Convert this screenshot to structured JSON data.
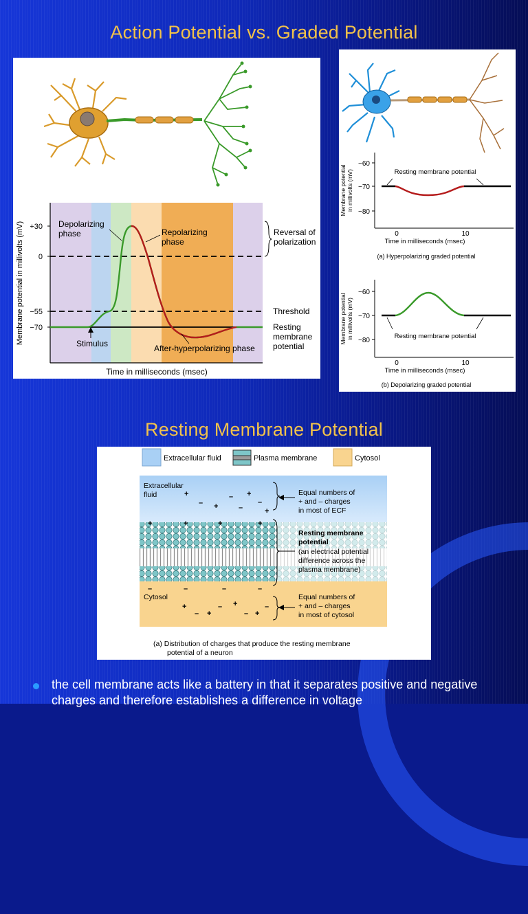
{
  "slide": {
    "title_top": "Action Potential vs. Graded Potential",
    "title_bottom": "Resting Membrane Potential",
    "bullet": "the cell membrane acts like a battery in that it separates positive and negative charges and therefore establishes a difference in voltage"
  },
  "action_potential_chart": {
    "ylabel": "Membrane potential in millivolts (mV)",
    "xlabel": "Time in milliseconds (msec)",
    "ticks": [
      "+30",
      "0",
      "−55",
      "−70"
    ],
    "labels": {
      "depolarizing": [
        "Depolarizing",
        "phase"
      ],
      "repolarizing": [
        "Repolarizing",
        "phase"
      ],
      "reversal": [
        "Reversal of",
        "polarization"
      ],
      "threshold": "Threshold",
      "resting": [
        "Resting",
        "membrane",
        "potential"
      ],
      "stimulus": "Stimulus",
      "after": "After-hyperpolarizing phase"
    }
  },
  "graded_a": {
    "ylabel": [
      "Membrane potential",
      "in millivolts (mV)"
    ],
    "ticks": [
      "−60",
      "−70",
      "−80"
    ],
    "xticks": [
      "0",
      "10"
    ],
    "xlabel": "Time in milliseconds (msec)",
    "curve_label": "Resting membrane potential",
    "caption": "(a) Hyperpolarizing graded potential"
  },
  "graded_b": {
    "ylabel": [
      "Membrane potential",
      "in millivolts (mV)"
    ],
    "ticks": [
      "−60",
      "−70",
      "−80"
    ],
    "xticks": [
      "0",
      "10"
    ],
    "xlabel": "Time in milliseconds (msec)",
    "curve_label": "Resting membrane potential",
    "caption": "(b) Depolarizing graded potential"
  },
  "membrane": {
    "legend": [
      "Extracellular fluid",
      "Plasma membrane",
      "Cytosol"
    ],
    "extracellular_label": [
      "Extracellular",
      "fluid"
    ],
    "cytosol_label": "Cytosol",
    "ecf_note": [
      "Equal numbers of",
      "+ and – charges",
      "in most of ECF"
    ],
    "rmp_title": [
      "Resting membrane",
      "potential"
    ],
    "rmp_note": [
      "(an electrical potential",
      "difference across the",
      "plasma membrane)"
    ],
    "cyto_note": [
      "Equal numbers of",
      "+ and – charges",
      "in most of cytosol"
    ],
    "caption": [
      "(a) Distribution of charges that produce the resting membrane",
      "potential of a neuron"
    ]
  },
  "colors": {
    "title": "#f2c24a",
    "green_trace": "#3a9a2a",
    "red_trace": "#b51c1c"
  }
}
